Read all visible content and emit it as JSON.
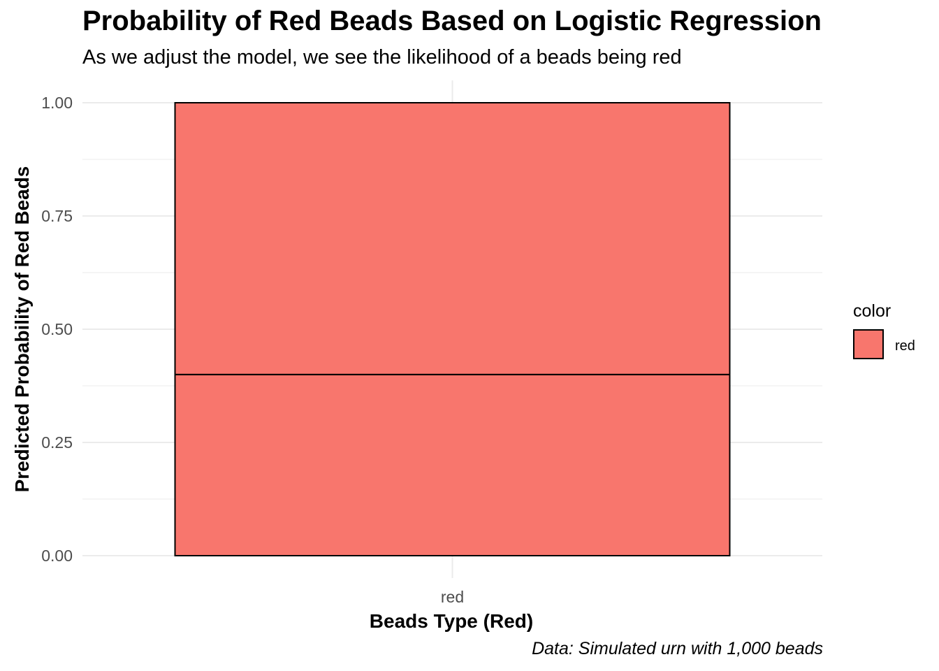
{
  "chart_data": {
    "type": "bar",
    "title": "Probability of Red Beads Based on Logistic Regression",
    "subtitle": "As we adjust the model, we see the likelihood of a beads being red",
    "caption": "Data: Simulated urn with 1,000 beads",
    "xlabel": "Beads Type (Red)",
    "ylabel": "Predicted Probability of Red Beads",
    "categories": [
      "red"
    ],
    "stacked": true,
    "segments": [
      {
        "category": "red",
        "from": 0,
        "to": 0.4
      },
      {
        "category": "red",
        "from": 0.4,
        "to": 1.0
      }
    ],
    "ylim": [
      0,
      1
    ],
    "yticks": [
      "0.00",
      "0.25",
      "0.50",
      "0.75",
      "1.00"
    ],
    "ytick_values": [
      0,
      0.25,
      0.5,
      0.75,
      1.0
    ],
    "grid": true,
    "legend": {
      "title": "color",
      "placement": "right",
      "items": [
        {
          "label": "red",
          "color": "#F8766D"
        }
      ]
    },
    "bar_color": "#F8766D",
    "outline_color": "#000000"
  }
}
